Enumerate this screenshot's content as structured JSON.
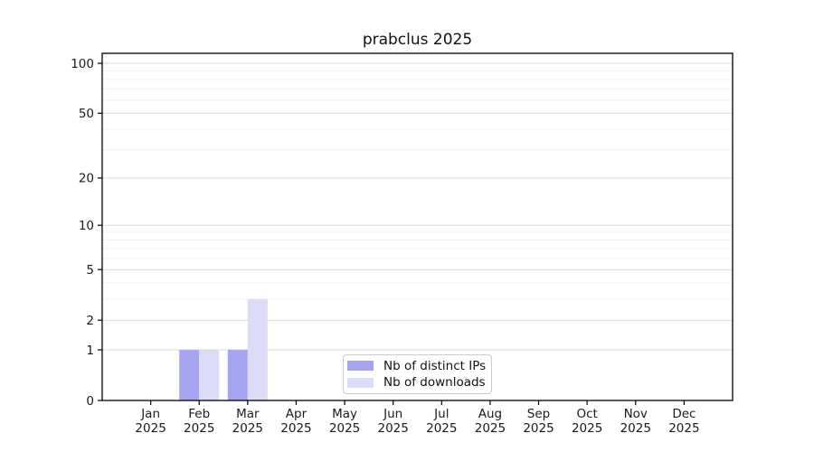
{
  "chart_data": {
    "type": "bar",
    "title": "prabclus 2025",
    "categories": [
      "Jan",
      "Feb",
      "Mar",
      "Apr",
      "May",
      "Jun",
      "Jul",
      "Aug",
      "Sep",
      "Oct",
      "Nov",
      "Dec"
    ],
    "x_tick_year": "2025",
    "series": [
      {
        "name": "Nb of distinct IPs",
        "color": "#a4a4f0",
        "values": [
          0,
          1,
          1,
          0,
          0,
          0,
          0,
          0,
          0,
          0,
          0,
          0
        ]
      },
      {
        "name": "Nb of downloads",
        "color": "#dcdcf8",
        "values": [
          0,
          1,
          3,
          0,
          0,
          0,
          0,
          0,
          0,
          0,
          0,
          0
        ]
      }
    ],
    "y_scale": "log1p",
    "y_ticks": [
      0,
      1,
      2,
      5,
      10,
      20,
      50,
      100
    ],
    "y_tick_labels": [
      "0",
      "1",
      "2",
      "5",
      "10",
      "20",
      "50",
      "100"
    ],
    "y_minor_ticks": [
      3,
      4,
      6,
      7,
      8,
      9,
      30,
      40,
      60,
      70,
      80,
      90
    ],
    "ylim": [
      0,
      115
    ],
    "grid": true,
    "legend_position": "lower center"
  },
  "colors": {
    "background": "#ffffff",
    "bar_distinct_ips": "#a4a4f0",
    "bar_downloads": "#dcdcf8",
    "grid_major": "#d9d9d9",
    "grid_minor": "#f0f0f0",
    "axis_frame": "#000000",
    "tick": "#000000",
    "text": "#1a1a1a",
    "legend_border": "#cccccc"
  }
}
